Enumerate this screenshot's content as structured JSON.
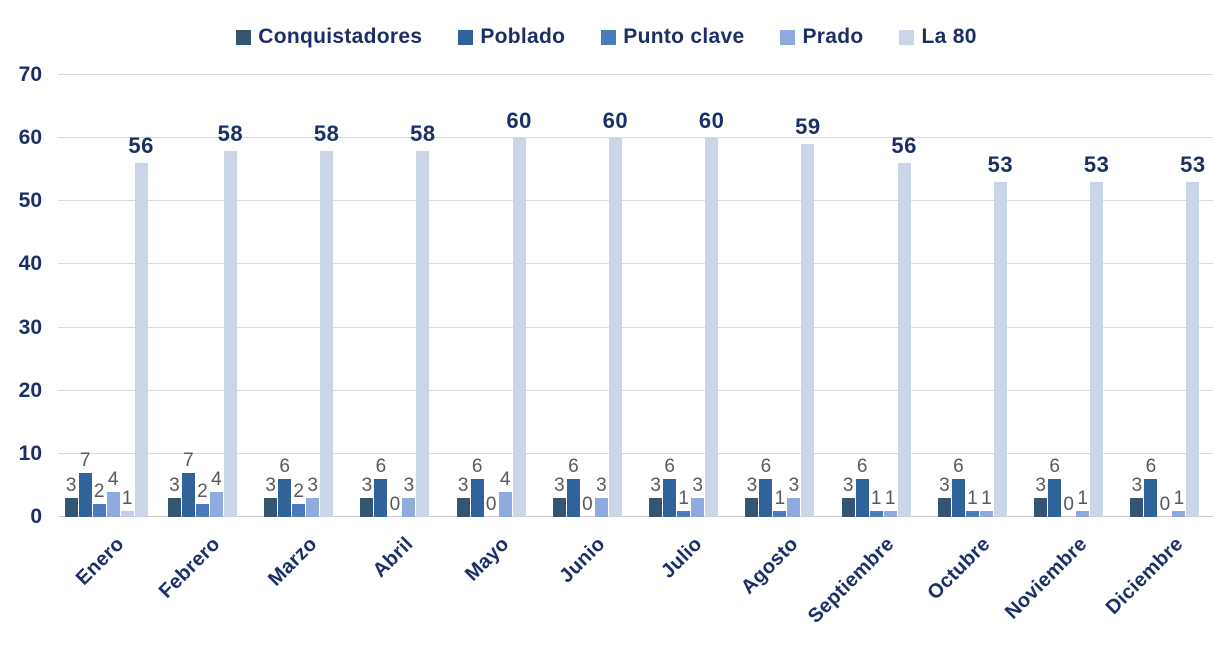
{
  "chart_data": {
    "type": "bar",
    "title": "",
    "xlabel": "",
    "ylabel": "",
    "categories": [
      "Enero",
      "Febrero",
      "Marzo",
      "Abril",
      "Mayo",
      "Junio",
      "Julio",
      "Agosto",
      "Septiembre",
      "Octubre",
      "Noviembre",
      "Diciembre"
    ],
    "series": [
      {
        "name": "Conquistadores",
        "color": "#355672",
        "values": [
          3,
          3,
          3,
          3,
          3,
          3,
          3,
          3,
          3,
          3,
          3,
          3
        ]
      },
      {
        "name": "Poblado",
        "color": "#2F6399",
        "values": [
          7,
          7,
          6,
          6,
          6,
          6,
          6,
          6,
          6,
          6,
          6,
          6
        ]
      },
      {
        "name": "Punto clave",
        "color": "#4A7ab8",
        "values": [
          2,
          2,
          2,
          0,
          0,
          0,
          1,
          1,
          1,
          1,
          0,
          0
        ]
      },
      {
        "name": "Prado",
        "color": "#8FAADC",
        "values": [
          4,
          4,
          3,
          3,
          4,
          3,
          3,
          3,
          1,
          1,
          1,
          1
        ]
      },
      {
        "name": "La 80",
        "color": "#CAD5E8",
        "values": [
          56,
          58,
          58,
          58,
          60,
          60,
          60,
          59,
          56,
          53,
          53,
          53
        ]
      }
    ],
    "extra_bars": [
      {
        "category": "Enero",
        "after_series": "Prado",
        "value": 1,
        "color": "#C3CfE4"
      }
    ],
    "big_label_series": "La 80",
    "ylim": [
      0,
      70
    ],
    "yticks": [
      0,
      10,
      20,
      30,
      40,
      50,
      60,
      70
    ],
    "grid": true,
    "legend_position": "top",
    "colors": {
      "axis_text": "#1C2E66",
      "small_label": "#595959",
      "gridline": "#D9D9D9",
      "baseline": "#CBCBCB",
      "background": "#FFFFFF"
    }
  }
}
